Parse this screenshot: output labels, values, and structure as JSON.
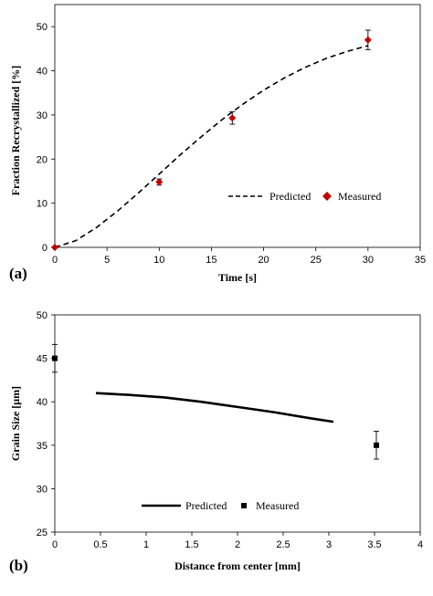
{
  "chart_data": [
    {
      "type": "line",
      "panel_label": "(a)",
      "xlabel": "Time [s]",
      "ylabel": "Fraction Recrystallized [%]",
      "xlim": [
        0,
        35
      ],
      "ylim": [
        0,
        55
      ],
      "xticks": [
        "0",
        "5",
        "10",
        "15",
        "20",
        "25",
        "30",
        "35"
      ],
      "yticks": [
        "0",
        "10",
        "20",
        "30",
        "40",
        "50"
      ],
      "grid": false,
      "legend": "bottom-right",
      "series": [
        {
          "name": "Predicted",
          "style": "dashed-line",
          "color": "#000000",
          "x": [
            0,
            2,
            4,
            6,
            8,
            10,
            12,
            14,
            16,
            18,
            20,
            22,
            24,
            26,
            28,
            30
          ],
          "y": [
            0,
            1.5,
            4.5,
            8.2,
            12.3,
            16.6,
            20.9,
            25.0,
            28.9,
            32.4,
            35.6,
            38.4,
            40.8,
            42.8,
            44.4,
            45.7
          ]
        },
        {
          "name": "Measured",
          "style": "diamond-markers",
          "color": "#c00000",
          "x": [
            0,
            10,
            17,
            30
          ],
          "y": [
            0,
            14.8,
            29.3,
            47.0
          ],
          "yerr": [
            0,
            0.7,
            1.4,
            2.2
          ]
        }
      ]
    },
    {
      "type": "line",
      "panel_label": "(b)",
      "xlabel": "Distance from center [mm]",
      "ylabel": "Grain Size [μm]",
      "xlim": [
        0,
        4
      ],
      "ylim": [
        25,
        50
      ],
      "xticks": [
        "0",
        "0.5",
        "1",
        "1.5",
        "2",
        "2.5",
        "3",
        "3.5",
        "4"
      ],
      "yticks": [
        "25",
        "30",
        "35",
        "40",
        "45",
        "50"
      ],
      "grid": false,
      "legend": "bottom-left",
      "series": [
        {
          "name": "Predicted",
          "style": "solid-line",
          "color": "#000000",
          "x": [
            0.45,
            0.8,
            1.2,
            1.6,
            2.0,
            2.4,
            2.8,
            3.05
          ],
          "y": [
            41.0,
            40.8,
            40.5,
            40.0,
            39.4,
            38.8,
            38.1,
            37.7
          ]
        },
        {
          "name": "Measured",
          "style": "square-markers",
          "color": "#000000",
          "x": [
            0,
            3.52
          ],
          "y": [
            45.0,
            35.0
          ],
          "yerr": [
            1.6,
            1.6
          ]
        }
      ]
    }
  ]
}
